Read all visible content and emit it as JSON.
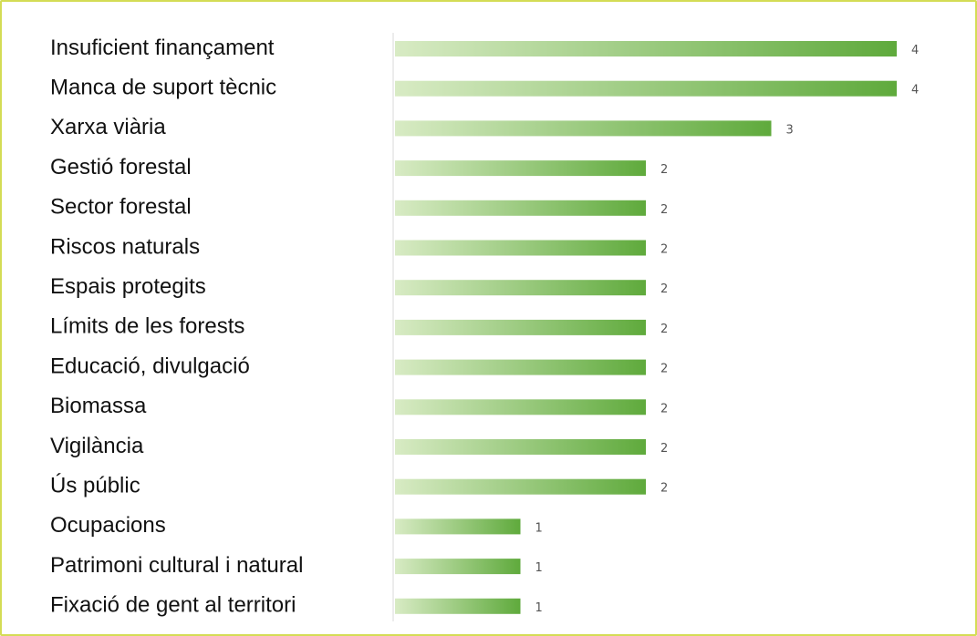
{
  "chart_data": {
    "type": "bar",
    "orientation": "horizontal",
    "categories": [
      "Insuficient finançament",
      "Manca de suport tècnic",
      "Xarxa viària",
      "Gestió forestal",
      "Sector forestal",
      "Riscos naturals",
      "Espais protegits",
      "Límits de les forests",
      "Educació, divulgació",
      "Biomassa",
      "Vigilància",
      "Ús públic",
      "Ocupacions",
      "Patrimoni cultural i natural",
      "Fixació de gent al territori"
    ],
    "values": [
      4,
      4,
      3,
      2,
      2,
      2,
      2,
      2,
      2,
      2,
      2,
      2,
      1,
      1,
      1
    ],
    "data_labels": [
      "4",
      "4",
      "3",
      "2",
      "2",
      "2",
      "2",
      "2",
      "2",
      "2",
      "2",
      "2",
      "1",
      "1",
      "1"
    ],
    "xlim": [
      0,
      4
    ],
    "grid": false,
    "legend": "none",
    "colors": {
      "bar_start": "#d8ebc4",
      "bar_end": "#5faa3c",
      "axis": "#d9d9d9",
      "frame": "#d4dc55"
    }
  }
}
